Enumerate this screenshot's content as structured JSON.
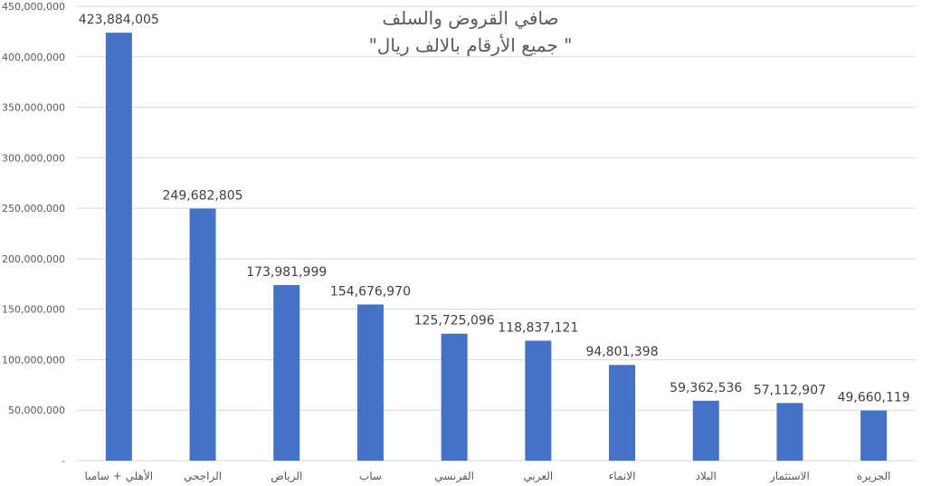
{
  "chart_data": {
    "type": "bar",
    "title": "صافي القروض والسلف",
    "subtitle": "\"جميع الأرقام بالالف ريال \"",
    "categories": [
      "الأهلي + سامبا",
      "الراجحي",
      "الرياض",
      "ساب",
      "الفرنسي",
      "العربي",
      "الانماء",
      "البلاد",
      "الاستثمار",
      "الجزيرة"
    ],
    "values": [
      423884005,
      249682805,
      173981999,
      154676970,
      125725096,
      118837121,
      94801398,
      59362536,
      57112907,
      49660119
    ],
    "data_labels": [
      "423,884,005",
      "249,682,805",
      "173,981,999",
      "154,676,970",
      "125,725,096",
      "118,837,121",
      "94,801,398",
      "59,362,536",
      "57,112,907",
      "49,660,119"
    ],
    "yticks": [
      0,
      50000000,
      100000000,
      150000000,
      200000000,
      250000000,
      300000000,
      350000000,
      400000000,
      450000000
    ],
    "ytick_labels": [
      "-",
      "50,000,000",
      "100,000,000",
      "150,000,000",
      "200,000,000",
      "250,000,000",
      "300,000,000",
      "350,000,000",
      "400,000,000",
      "450,000,000"
    ],
    "ylim": [
      0,
      450000000
    ],
    "xlabel": "",
    "ylabel": "",
    "grid": true,
    "legend": "none",
    "colors": {
      "bar": "#4472C4",
      "grid": "#D9D9D9",
      "text": "#595959",
      "label": "#404040"
    }
  }
}
